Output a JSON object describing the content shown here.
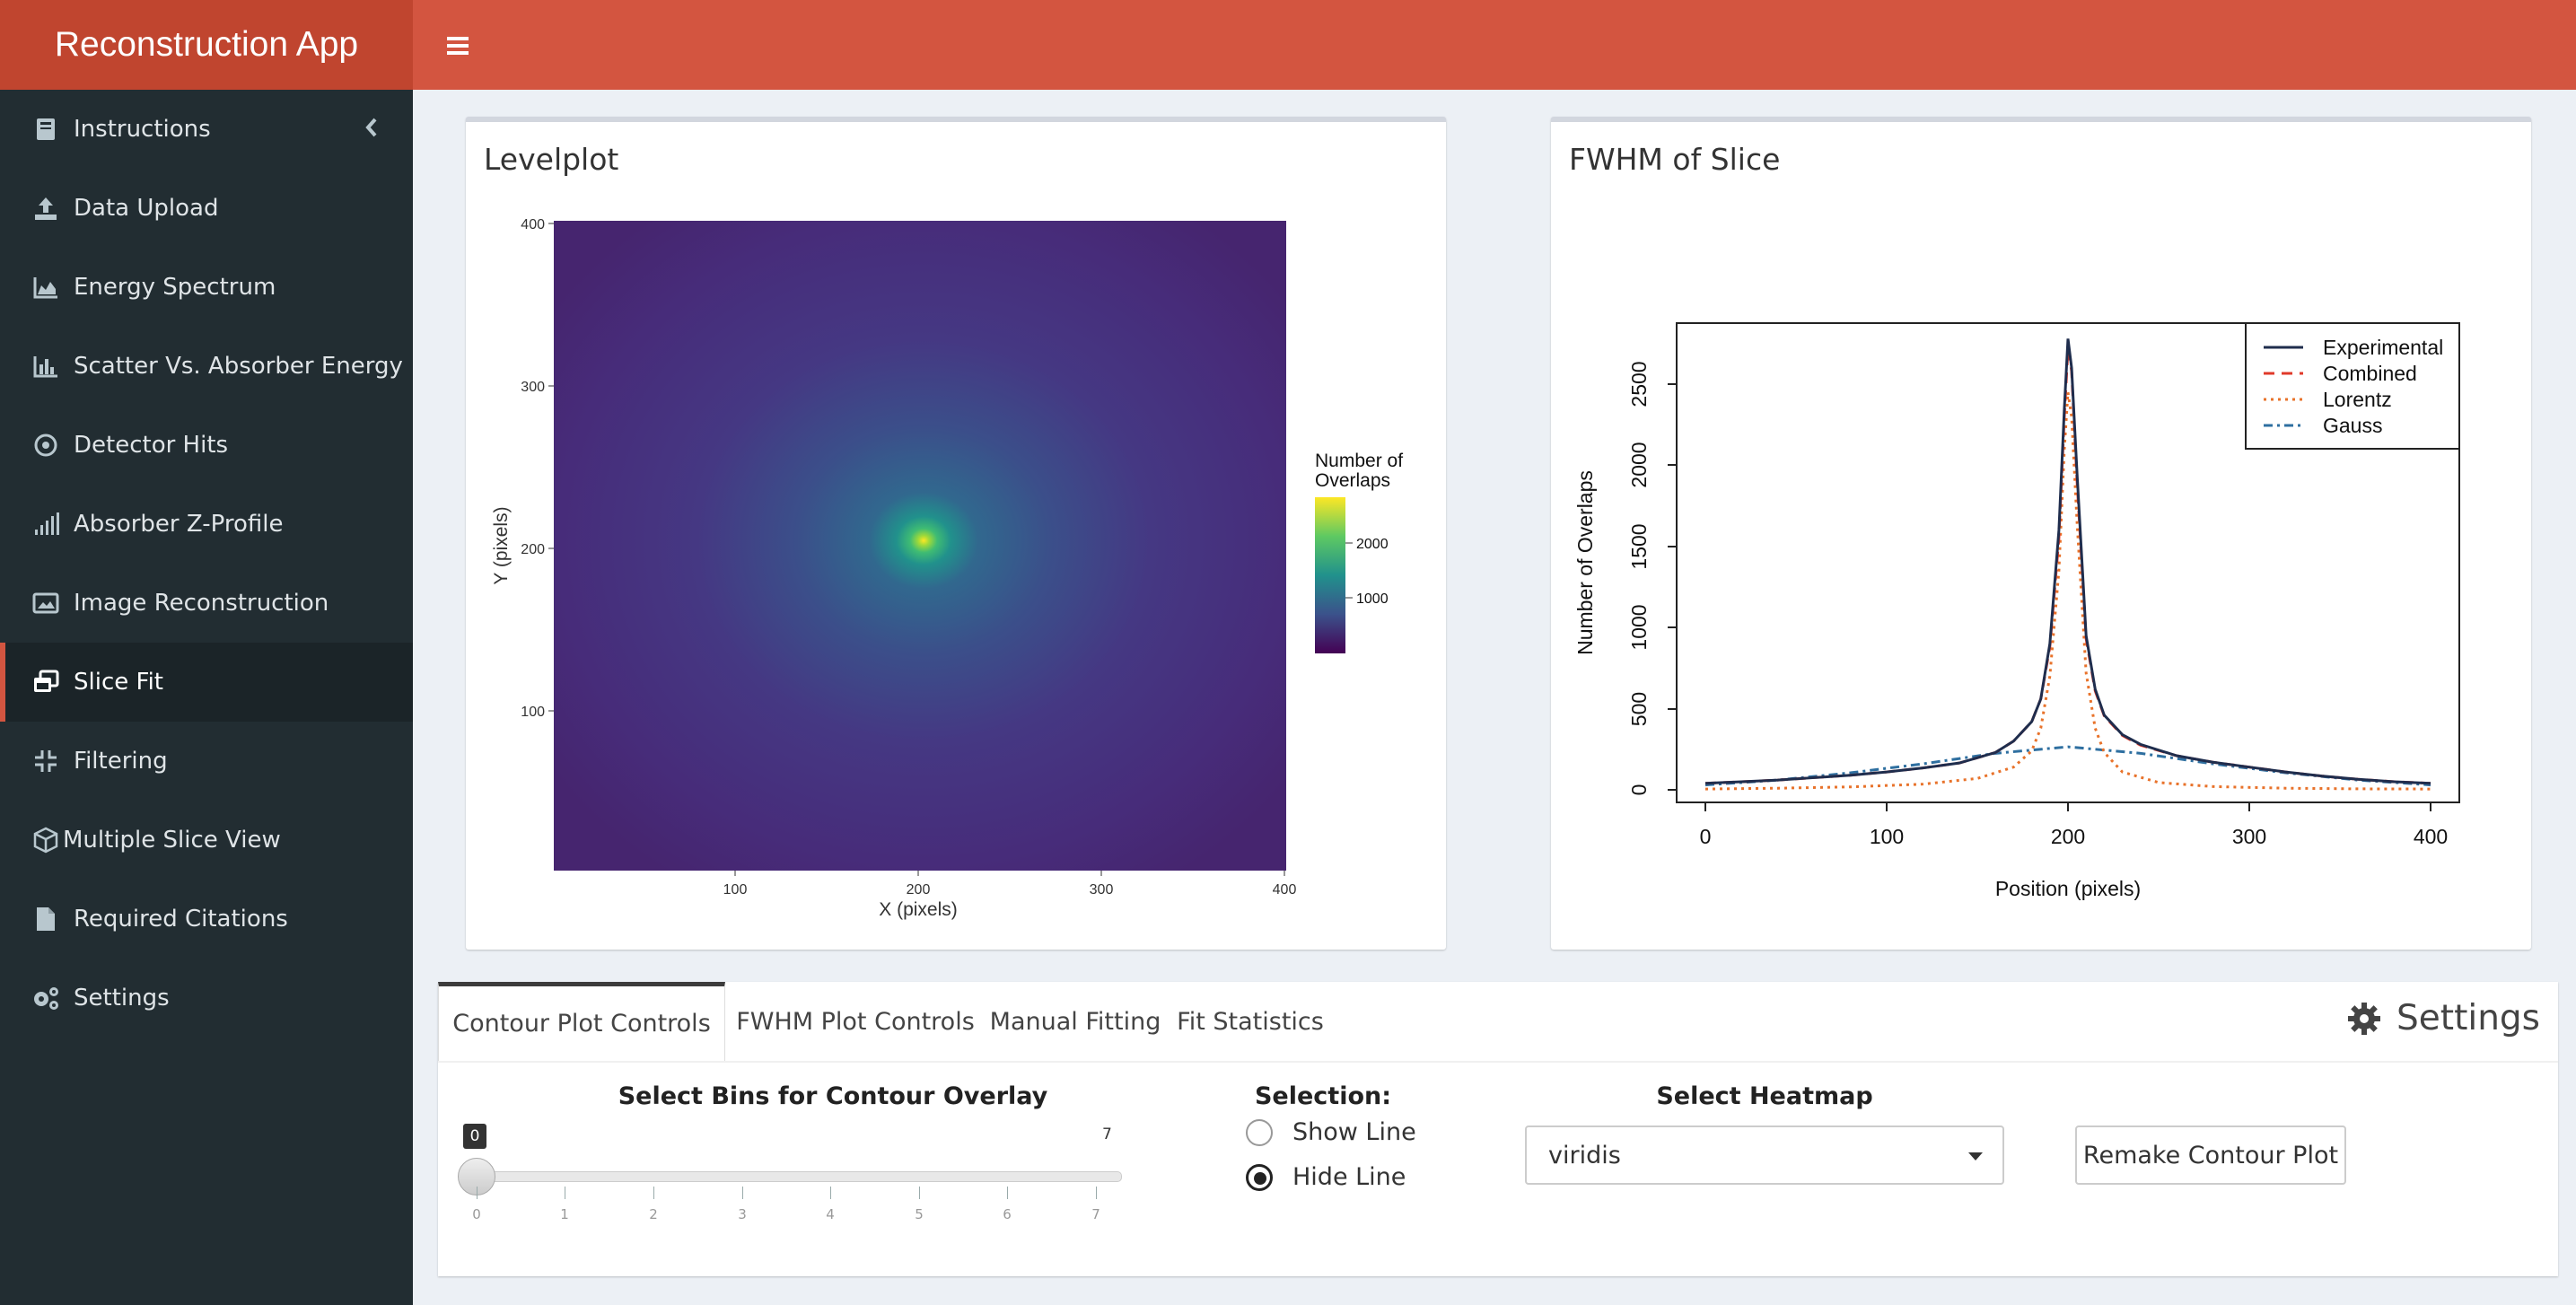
{
  "app": {
    "title": "Reconstruction App"
  },
  "sidebar": {
    "items": [
      {
        "label": "Instructions",
        "icon": "book-icon"
      },
      {
        "label": "Data Upload",
        "icon": "upload-icon"
      },
      {
        "label": "Energy Spectrum",
        "icon": "area-chart-icon"
      },
      {
        "label": "Scatter Vs. Absorber Energy",
        "icon": "bar-chart-icon"
      },
      {
        "label": "Detector Hits",
        "icon": "target-icon"
      },
      {
        "label": "Absorber Z-Profile",
        "icon": "signal-icon"
      },
      {
        "label": "Image Reconstruction",
        "icon": "image-icon"
      },
      {
        "label": "Slice Fit",
        "icon": "window-restore-icon",
        "active": true
      },
      {
        "label": "Filtering",
        "icon": "compress-icon"
      },
      {
        "label": "Multiple Slice View",
        "icon": "cube-icon"
      },
      {
        "label": "Required Citations",
        "icon": "file-icon"
      },
      {
        "label": "Settings",
        "icon": "cogs-icon"
      }
    ]
  },
  "levelplot": {
    "title": "Levelplot",
    "xlabel": "X (pixels)",
    "ylabel": "Y (pixels)",
    "xticks": [
      "100",
      "200",
      "300",
      "400"
    ],
    "yticks": [
      "100",
      "200",
      "300",
      "400"
    ],
    "legend_title_1": "Number of",
    "legend_title_2": "Overlaps",
    "legend_ticks": [
      "2000",
      "1000"
    ]
  },
  "fwhm": {
    "title": "FWHM of Slice"
  },
  "chart_data": [
    {
      "type": "heatmap",
      "title": "Levelplot",
      "xlabel": "X (pixels)",
      "ylabel": "Y (pixels)",
      "xlim": [
        0,
        400
      ],
      "ylim": [
        0,
        400
      ],
      "peak": {
        "x": 202,
        "y": 203,
        "value": 2800
      },
      "colorbar": {
        "label": "Number of Overlaps",
        "range": [
          0,
          2800
        ],
        "ticks": [
          1000,
          2000
        ],
        "colormap": "viridis"
      }
    },
    {
      "type": "line",
      "title": "",
      "xlabel": "Position (pixels)",
      "ylabel": "Number of Overlaps",
      "xlim": [
        0,
        400
      ],
      "ylim": [
        0,
        2700
      ],
      "xticks": [
        0,
        100,
        200,
        300,
        400
      ],
      "yticks": [
        0,
        500,
        1000,
        1500,
        2000,
        2500
      ],
      "legend_position": "top-right",
      "series": [
        {
          "name": "Experimental",
          "color": "#1f2d4d",
          "style": "solid",
          "x": [
            0,
            20,
            40,
            60,
            80,
            100,
            120,
            140,
            160,
            170,
            180,
            185,
            190,
            195,
            198,
            200,
            202,
            205,
            210,
            215,
            220,
            230,
            240,
            260,
            280,
            300,
            320,
            340,
            360,
            380,
            400
          ],
          "y": [
            40,
            50,
            60,
            75,
            90,
            110,
            135,
            165,
            230,
            300,
            420,
            560,
            900,
            1600,
            2350,
            2780,
            2600,
            1950,
            950,
            620,
            460,
            340,
            280,
            210,
            170,
            140,
            110,
            85,
            65,
            50,
            40
          ]
        },
        {
          "name": "Combined",
          "color": "#e03a2a",
          "style": "dashed",
          "x": [
            0,
            20,
            40,
            60,
            80,
            100,
            120,
            140,
            160,
            170,
            180,
            185,
            190,
            195,
            198,
            200,
            202,
            205,
            210,
            215,
            220,
            230,
            240,
            260,
            280,
            300,
            320,
            340,
            360,
            380,
            400
          ],
          "y": [
            40,
            50,
            60,
            75,
            90,
            110,
            135,
            165,
            230,
            300,
            420,
            560,
            880,
            1550,
            2300,
            2720,
            2580,
            1900,
            930,
            610,
            455,
            335,
            275,
            210,
            170,
            140,
            110,
            85,
            65,
            50,
            40
          ]
        },
        {
          "name": "Lorentz",
          "color": "#e8722a",
          "style": "dotted",
          "x": [
            0,
            40,
            80,
            120,
            150,
            170,
            180,
            185,
            190,
            195,
            198,
            200,
            202,
            205,
            210,
            215,
            220,
            230,
            250,
            280,
            320,
            360,
            400
          ],
          "y": [
            5,
            10,
            18,
            35,
            70,
            140,
            240,
            380,
            700,
            1350,
            2100,
            2450,
            2300,
            1650,
            720,
            380,
            230,
            110,
            45,
            20,
            10,
            6,
            5
          ]
        },
        {
          "name": "Gauss",
          "color": "#2e6fa0",
          "style": "dashdot",
          "x": [
            0,
            40,
            80,
            120,
            160,
            200,
            240,
            280,
            320,
            360,
            400
          ],
          "y": [
            30,
            60,
            105,
            160,
            225,
            265,
            225,
            160,
            105,
            60,
            30
          ]
        }
      ]
    }
  ],
  "fwhm_labels": {
    "xlabel": "Position (pixels)",
    "ylabel": "Number of Overlaps",
    "xticks": [
      "0",
      "100",
      "200",
      "300",
      "400"
    ],
    "yticks": [
      "0",
      "500",
      "1000",
      "1500",
      "2000",
      "2500"
    ],
    "legend": [
      "Experimental",
      "Combined",
      "Lorentz",
      "Gauss"
    ]
  },
  "tabs": {
    "items": [
      "Contour Plot Controls",
      "FWHM Plot Controls",
      "Manual Fitting",
      "Fit Statistics"
    ],
    "settings_label": "Settings"
  },
  "controls": {
    "bins_label": "Select Bins for Contour Overlay",
    "slider_value": "0",
    "slider_max": "7",
    "slider_ticks": [
      "0",
      "1",
      "2",
      "3",
      "4",
      "5",
      "6",
      "7"
    ],
    "selection_label": "Selection:",
    "radio_show": "Show Line",
    "radio_hide": "Hide Line",
    "heatmap_label": "Select Heatmap",
    "heatmap_value": "viridis",
    "remake_button": "Remake Contour Plot"
  }
}
